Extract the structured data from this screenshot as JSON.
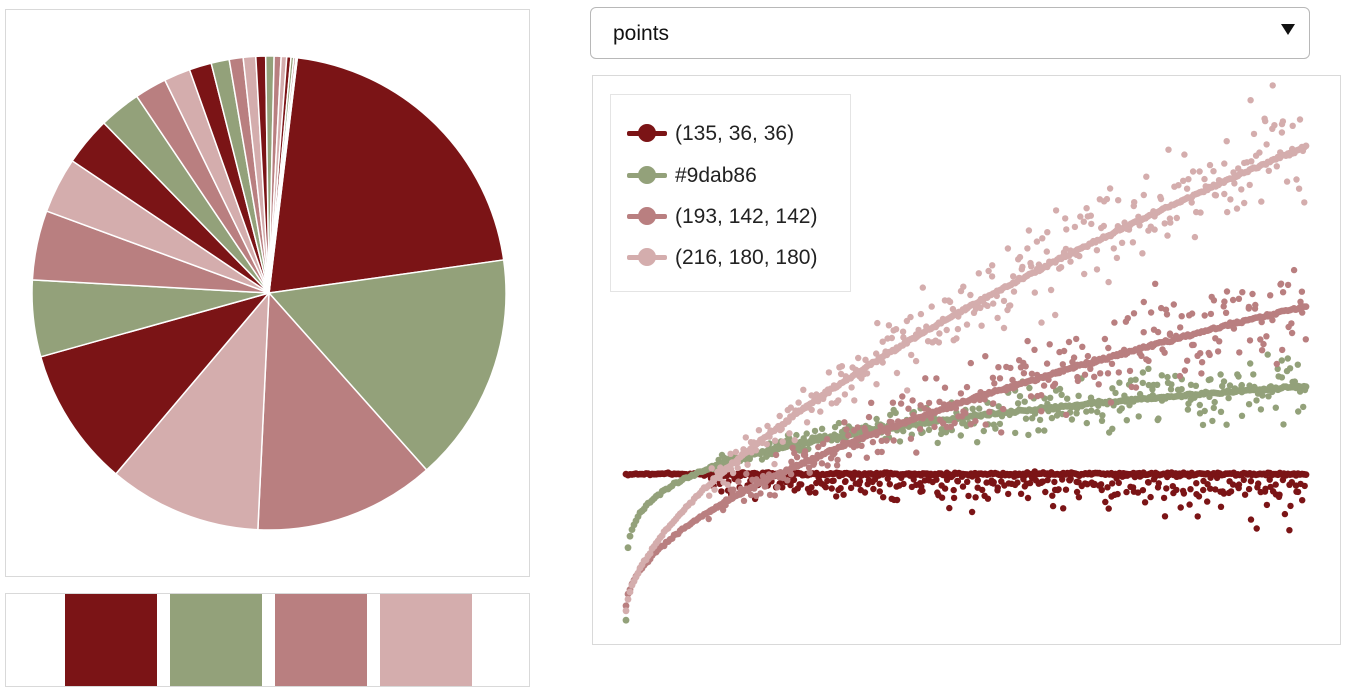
{
  "select": {
    "value": "points",
    "arrow_icon": "caret-down-icon"
  },
  "palette": [
    "#7b1416",
    "#93a17a",
    "#b97f80",
    "#d4adad"
  ],
  "legend": {
    "items": [
      {
        "label": "(135, 36, 36)",
        "color": "#7b1416"
      },
      {
        "label": "#9dab86",
        "color": "#93a17a"
      },
      {
        "label": "(193, 142, 142)",
        "color": "#b97f80"
      },
      {
        "label": "(216, 180, 180)",
        "color": "#d4adad"
      }
    ]
  },
  "chart_data": [
    {
      "type": "pie",
      "values": [
        22.0,
        16.5,
        13.0,
        11.0,
        10.0,
        5.5,
        5.0,
        4.0,
        3.5,
        3.0,
        2.3,
        1.9,
        1.6,
        1.3,
        1.0,
        0.9,
        0.7,
        0.6,
        0.5,
        0.4,
        0.3,
        0.2,
        0.15,
        0.1
      ],
      "colors": [
        "#7b1416",
        "#93a17a",
        "#b97f80",
        "#d4adad"
      ]
    },
    {
      "type": "scatter",
      "series": [
        {
          "color": "#7b1416",
          "trend": "flat"
        },
        {
          "color": "#93a17a",
          "trend": "slow-rise"
        },
        {
          "color": "#b97f80",
          "trend": "medium-rise"
        },
        {
          "color": "#d4adad",
          "trend": "fast-rise"
        }
      ],
      "grid": false,
      "legend_position": "top-left"
    }
  ]
}
